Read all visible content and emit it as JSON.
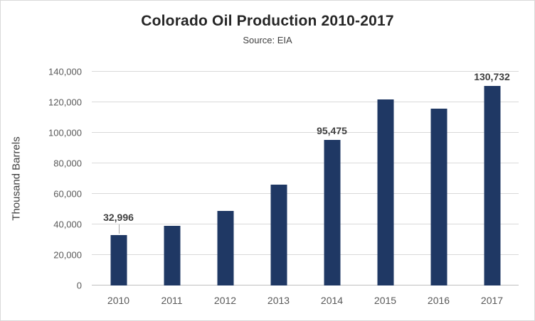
{
  "chart_data": {
    "type": "bar",
    "title": "Colorado Oil Production 2010-2017",
    "subtitle": "Source: EIA",
    "ylabel": "Thousand Barrels",
    "xlabel": "",
    "ylim": [
      0,
      140000
    ],
    "grid": true,
    "legend": "none",
    "bar_color": "#1F3864",
    "gridline_color": "#D9D9D9",
    "categories": [
      "2010",
      "2011",
      "2012",
      "2013",
      "2014",
      "2015",
      "2016",
      "2017"
    ],
    "values": [
      32996,
      39000,
      49000,
      66000,
      95475,
      122000,
      116000,
      130732
    ],
    "yticks": [
      0,
      20000,
      40000,
      60000,
      80000,
      100000,
      120000,
      140000
    ],
    "ytick_labels": [
      "0",
      "20,000",
      "40,000",
      "60,000",
      "80,000",
      "100,000",
      "120,000",
      "140,000"
    ],
    "data_labels": [
      {
        "index": 0,
        "text": "32,996",
        "leader": true
      },
      {
        "index": 4,
        "text": "95,475",
        "leader": false
      },
      {
        "index": 7,
        "text": "130,732",
        "leader": false
      }
    ]
  }
}
